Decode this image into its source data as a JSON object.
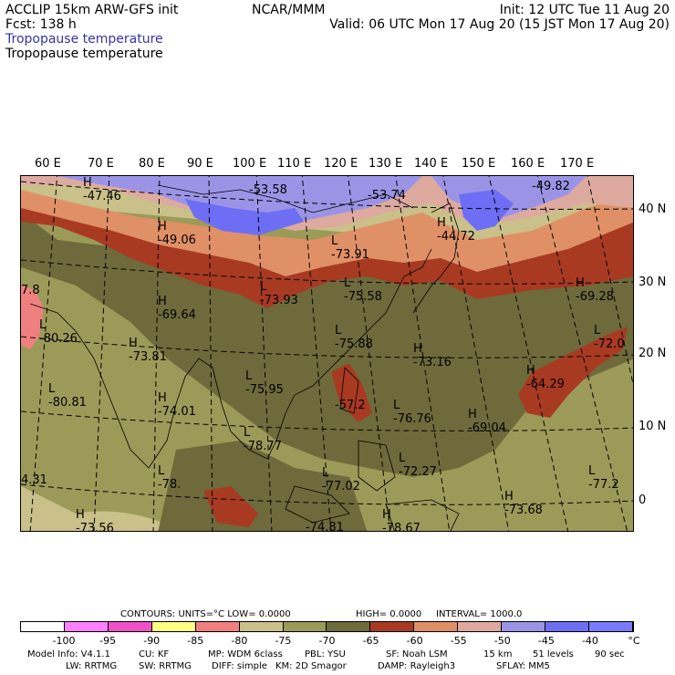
{
  "header": {
    "model": "ACCLIP 15km ARW-GFS init",
    "fcst": "Fcst:   138 h",
    "field1": "Tropopause temperature",
    "field2": "Tropopause temperature",
    "center": "NCAR/MMM",
    "init": "Init: 12 UTC Tue 11 Aug 20",
    "valid": "Valid: 06 UTC Mon 17 Aug 20 (15 JST Mon 17 Aug 20)"
  },
  "map": {
    "lon_labels": [
      "60 E",
      "70 E",
      "80 E",
      "90 E",
      "100 E",
      "110 E",
      "120 E",
      "130 E",
      "140 E",
      "150 E",
      "160 E",
      "170 E"
    ],
    "lat_labels": [
      "40 N",
      "30 N",
      "20 N",
      "10 N",
      "0"
    ],
    "colors": {
      "c_m50": "#9b94e6",
      "c_m55": "#deaaa0",
      "c_m60": "#e09066",
      "c_m65": "#a83a22",
      "c_m70": "#6e6a3b",
      "c_m75": "#9c9a58",
      "c_m80": "#c9c08a",
      "c_m85": "#f08080",
      "c_m45": "#6e6ef5"
    },
    "labels": [
      {
        "id": "h1",
        "mark": "H",
        "value": "-47.46"
      },
      {
        "id": "l1",
        "mark": "",
        "value": "-53.58"
      },
      {
        "id": "l2",
        "mark": "",
        "value": "-53.74"
      },
      {
        "id": "l3",
        "mark": "",
        "value": "-49.82"
      },
      {
        "id": "h2",
        "mark": "H",
        "value": "-49.06"
      },
      {
        "id": "h3",
        "mark": "H",
        "value": "-44.72"
      },
      {
        "id": "l4",
        "mark": "L",
        "value": "-73.91"
      },
      {
        "id": "l5",
        "mark": "L",
        "value": "-73.93"
      },
      {
        "id": "l6",
        "mark": "L",
        "value": "-75.58"
      },
      {
        "id": "h4",
        "mark": "H",
        "value": "-69.28"
      },
      {
        "id": "h5",
        "mark": "H",
        "value": "-69.64"
      },
      {
        "id": "l7",
        "mark": "L",
        "value": "-80.26"
      },
      {
        "id": "h6",
        "mark": "H",
        "value": "-73.81"
      },
      {
        "id": "l8",
        "mark": "L",
        "value": "-75.88"
      },
      {
        "id": "h7",
        "mark": "H",
        "value": "-73.16"
      },
      {
        "id": "l9",
        "mark": "L",
        "value": "-72.0"
      },
      {
        "id": "l10",
        "mark": "L",
        "value": "-80.81"
      },
      {
        "id": "h8",
        "mark": "H",
        "value": "-74.01"
      },
      {
        "id": "l11",
        "mark": "L",
        "value": "-75.95"
      },
      {
        "id": "l12",
        "mark": "",
        "value": "-57.2"
      },
      {
        "id": "l13",
        "mark": "L",
        "value": "-76.76"
      },
      {
        "id": "h9",
        "mark": "H",
        "value": "-69.04"
      },
      {
        "id": "h10",
        "mark": "H",
        "value": "-64.29"
      },
      {
        "id": "l14",
        "mark": "L",
        "value": "-78.77"
      },
      {
        "id": "l15",
        "mark": "L",
        "value": "-77.02"
      },
      {
        "id": "l16",
        "mark": "L",
        "value": "-72.27"
      },
      {
        "id": "l17",
        "mark": "L",
        "value": "-77.2"
      },
      {
        "id": "l18",
        "mark": "L",
        "value": "-78."
      },
      {
        "id": "h11",
        "mark": "H",
        "value": "-73.56"
      },
      {
        "id": "l19",
        "mark": "",
        "value": "-74.81"
      },
      {
        "id": "h12",
        "mark": "H",
        "value": "-78.67"
      },
      {
        "id": "h13",
        "mark": "H",
        "value": "-73.68"
      },
      {
        "id": "e1",
        "mark": "",
        "value": "7.8"
      },
      {
        "id": "e2",
        "mark": "",
        "value": "4.31"
      }
    ]
  },
  "legend": {
    "contours": "CONTOURS:  UNITS=°C  LOW=  0.0000",
    "high": "HIGH=  0.0000",
    "interval": "INTERVAL=   1000.0",
    "tick_labels": [
      "-100",
      "-95",
      "-90",
      "-85",
      "-80",
      "-75",
      "-70",
      "-65",
      "-60",
      "-55",
      "-50",
      "-45",
      "-40",
      "°C"
    ],
    "bar_colors": [
      "#ffffff",
      "#ff80ff",
      "#f050c8",
      "#ffff80",
      "#f08080",
      "#c9c08a",
      "#9c9a58",
      "#6e6a3b",
      "#a83a22",
      "#e09066",
      "#deaaa0",
      "#9b94e6",
      "#6e6ef5",
      "#7a7aff"
    ]
  },
  "footer": {
    "line1": [
      "Model Info: V4.1.1",
      "CU: KF",
      "MP: WDM 6class",
      "PBL: YSU",
      "SF: Noah LSM",
      "15 km",
      "51 levels",
      "90 sec"
    ],
    "line2": [
      "LW: RRTMG",
      "SW: RRTMG",
      "DIFF: simple",
      "KM: 2D Smagor",
      "DAMP: Rayleigh3",
      "SFLAY: MM5"
    ]
  }
}
